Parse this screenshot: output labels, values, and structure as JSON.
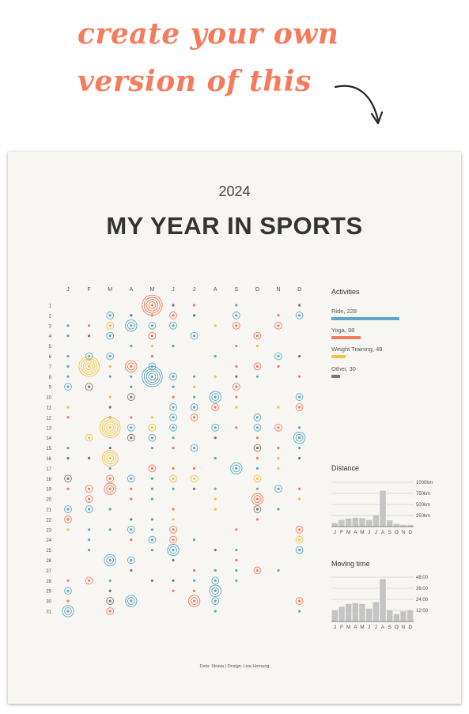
{
  "headline": {
    "line1": "create your own",
    "line2": "version of this"
  },
  "poster": {
    "year": "2024",
    "title": "MY YEAR IN SPORTS",
    "credit": "Data: Strava | Design: Lisa Hornung",
    "month_labels": [
      "J",
      "F",
      "M",
      "A",
      "M",
      "J",
      "J",
      "A",
      "S",
      "O",
      "N",
      "D"
    ],
    "day_labels": [
      "1",
      "2",
      "3",
      "4",
      "5",
      "6",
      "7",
      "8",
      "9",
      "10",
      "11",
      "12",
      "13",
      "14",
      "15",
      "16",
      "17",
      "18",
      "19",
      "20",
      "21",
      "22",
      "23",
      "24",
      "25",
      "26",
      "27",
      "28",
      "29",
      "30",
      "31"
    ],
    "colors": {
      "ride": "#5aa9c6",
      "yoga": "#f47c5c",
      "weight": "#f6c342",
      "other": "#777777"
    },
    "activities": {
      "title": "Activities",
      "items": [
        {
          "label": "Ride, 228",
          "value": 228,
          "color": "#5aa9c6"
        },
        {
          "label": "Yoga, 98",
          "value": 98,
          "color": "#f47c5c"
        },
        {
          "label": "Weight Training, 48",
          "value": 48,
          "color": "#f6c342"
        },
        {
          "label": "Other, 30",
          "value": 30,
          "color": "#777777"
        }
      ]
    },
    "distance": {
      "title": "Distance",
      "ticks": [
        "1000km",
        "750km",
        "500km",
        "250km"
      ],
      "months": [
        "J",
        "F",
        "M",
        "A",
        "M",
        "J",
        "J",
        "A",
        "S",
        "O",
        "N",
        "D"
      ]
    },
    "moving_time": {
      "title": "Moving time",
      "ticks": [
        "48:00",
        "36:00",
        "24:00",
        "12:00"
      ],
      "months": [
        "J",
        "F",
        "M",
        "A",
        "M",
        "J",
        "J",
        "A",
        "S",
        "O",
        "N",
        "D"
      ]
    }
  },
  "chart_data": [
    {
      "type": "bar",
      "title": "Distance",
      "categories": [
        "J",
        "F",
        "M",
        "A",
        "M",
        "J",
        "J",
        "A",
        "S",
        "O",
        "N",
        "D"
      ],
      "values": [
        80,
        150,
        180,
        200,
        190,
        150,
        260,
        810,
        140,
        60,
        40,
        40
      ],
      "ylim": [
        0,
        1000
      ]
    },
    {
      "type": "bar",
      "title": "Moving time",
      "categories": [
        "J",
        "F",
        "M",
        "A",
        "M",
        "J",
        "J",
        "A",
        "S",
        "O",
        "N",
        "D"
      ],
      "values": [
        12,
        16,
        19,
        20,
        19,
        14,
        21,
        46,
        12,
        8,
        11,
        12
      ],
      "ylim": [
        0,
        48
      ]
    }
  ]
}
